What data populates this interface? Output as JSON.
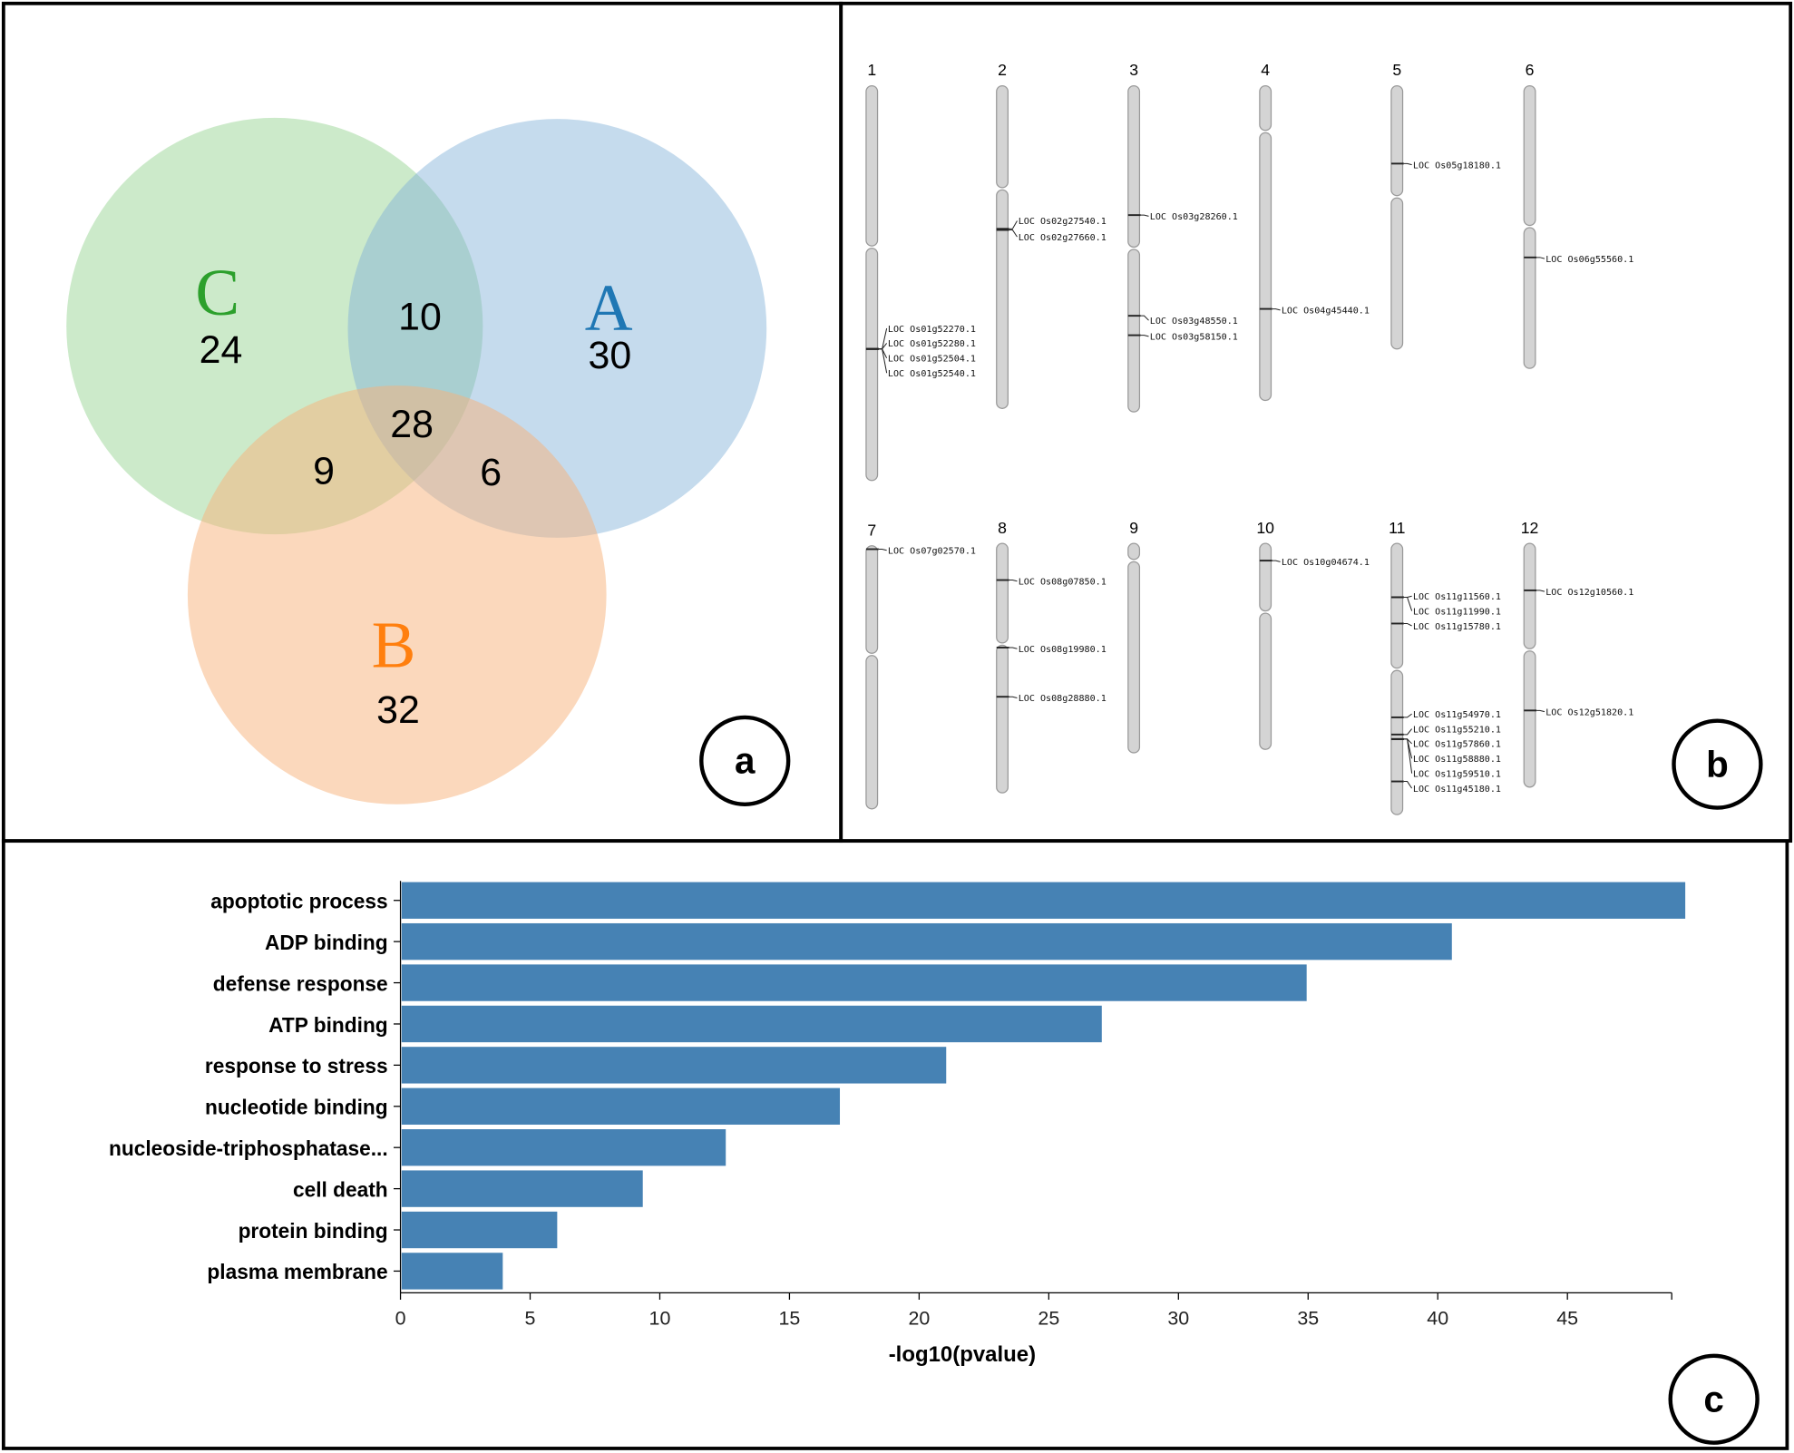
{
  "panels": {
    "a": "a",
    "b": "b",
    "c": "c"
  },
  "venn": {
    "sets": [
      {
        "name": "C",
        "unique": "24",
        "color": "#2ca02c",
        "fill": "#8fd08a"
      },
      {
        "name": "A",
        "unique": "30",
        "color": "#1f77b4",
        "fill": "#7fb0d8"
      },
      {
        "name": "B",
        "unique": "32",
        "color": "#ff7f0e",
        "fill": "#f7b27a"
      }
    ],
    "intersections": {
      "AC": "10",
      "BC": "9",
      "AB": "6",
      "ABC": "28"
    }
  },
  "chromosomes": [
    {
      "id": "1",
      "genes": [
        "LOC Os01g52270.1",
        "LOC Os01g52280.1",
        "LOC Os01g52504.1",
        "LOC Os01g52540.1"
      ]
    },
    {
      "id": "2",
      "genes": [
        "LOC Os02g27540.1",
        "LOC Os02g27660.1"
      ]
    },
    {
      "id": "3",
      "genes": [
        "LOC Os03g28260.1",
        "LOC Os03g48550.1",
        "LOC Os03g58150.1"
      ]
    },
    {
      "id": "4",
      "genes": [
        "LOC Os04g45440.1"
      ]
    },
    {
      "id": "5",
      "genes": [
        "LOC Os05g18180.1"
      ]
    },
    {
      "id": "6",
      "genes": [
        "LOC Os06g55560.1"
      ]
    },
    {
      "id": "7",
      "genes": [
        "LOC Os07g02570.1"
      ]
    },
    {
      "id": "8",
      "genes": [
        "LOC Os08g07850.1",
        "LOC Os08g19980.1",
        "LOC Os08g28880.1"
      ]
    },
    {
      "id": "9",
      "genes": []
    },
    {
      "id": "10",
      "genes": [
        "LOC Os10g04674.1"
      ]
    },
    {
      "id": "11",
      "genes": [
        "LOC Os11g11560.1",
        "LOC Os11g11990.1",
        "LOC Os11g15780.1",
        "LOC Os11g54970.1",
        "LOC Os11g55210.1",
        "LOC Os11g57860.1",
        "LOC Os11g58880.1",
        "LOC Os11g59510.1",
        "LOC Os11g45180.1"
      ]
    },
    {
      "id": "12",
      "genes": [
        "LOC Os12g10560.1",
        "LOC Os12g51820.1"
      ]
    }
  ],
  "chart_data": {
    "type": "bar",
    "orientation": "horizontal",
    "categories": [
      "apoptotic process",
      "ADP binding",
      "defense response",
      "ATP binding",
      "response to stress",
      "nucleotide binding",
      "nucleoside-triphosphatase...",
      "cell death",
      "protein binding",
      "plasma membrane"
    ],
    "values": [
      49.5,
      40.5,
      34.9,
      27.0,
      21.0,
      16.9,
      12.5,
      9.3,
      6.0,
      3.9
    ],
    "xlabel": "-log10(pvalue)",
    "ylabel": "",
    "xlim": [
      0,
      49
    ],
    "xticks": [
      "0",
      "5",
      "10",
      "15",
      "20",
      "25",
      "30",
      "35",
      "40",
      "45"
    ],
    "bar_color": "#4682b4",
    "grid": false
  }
}
